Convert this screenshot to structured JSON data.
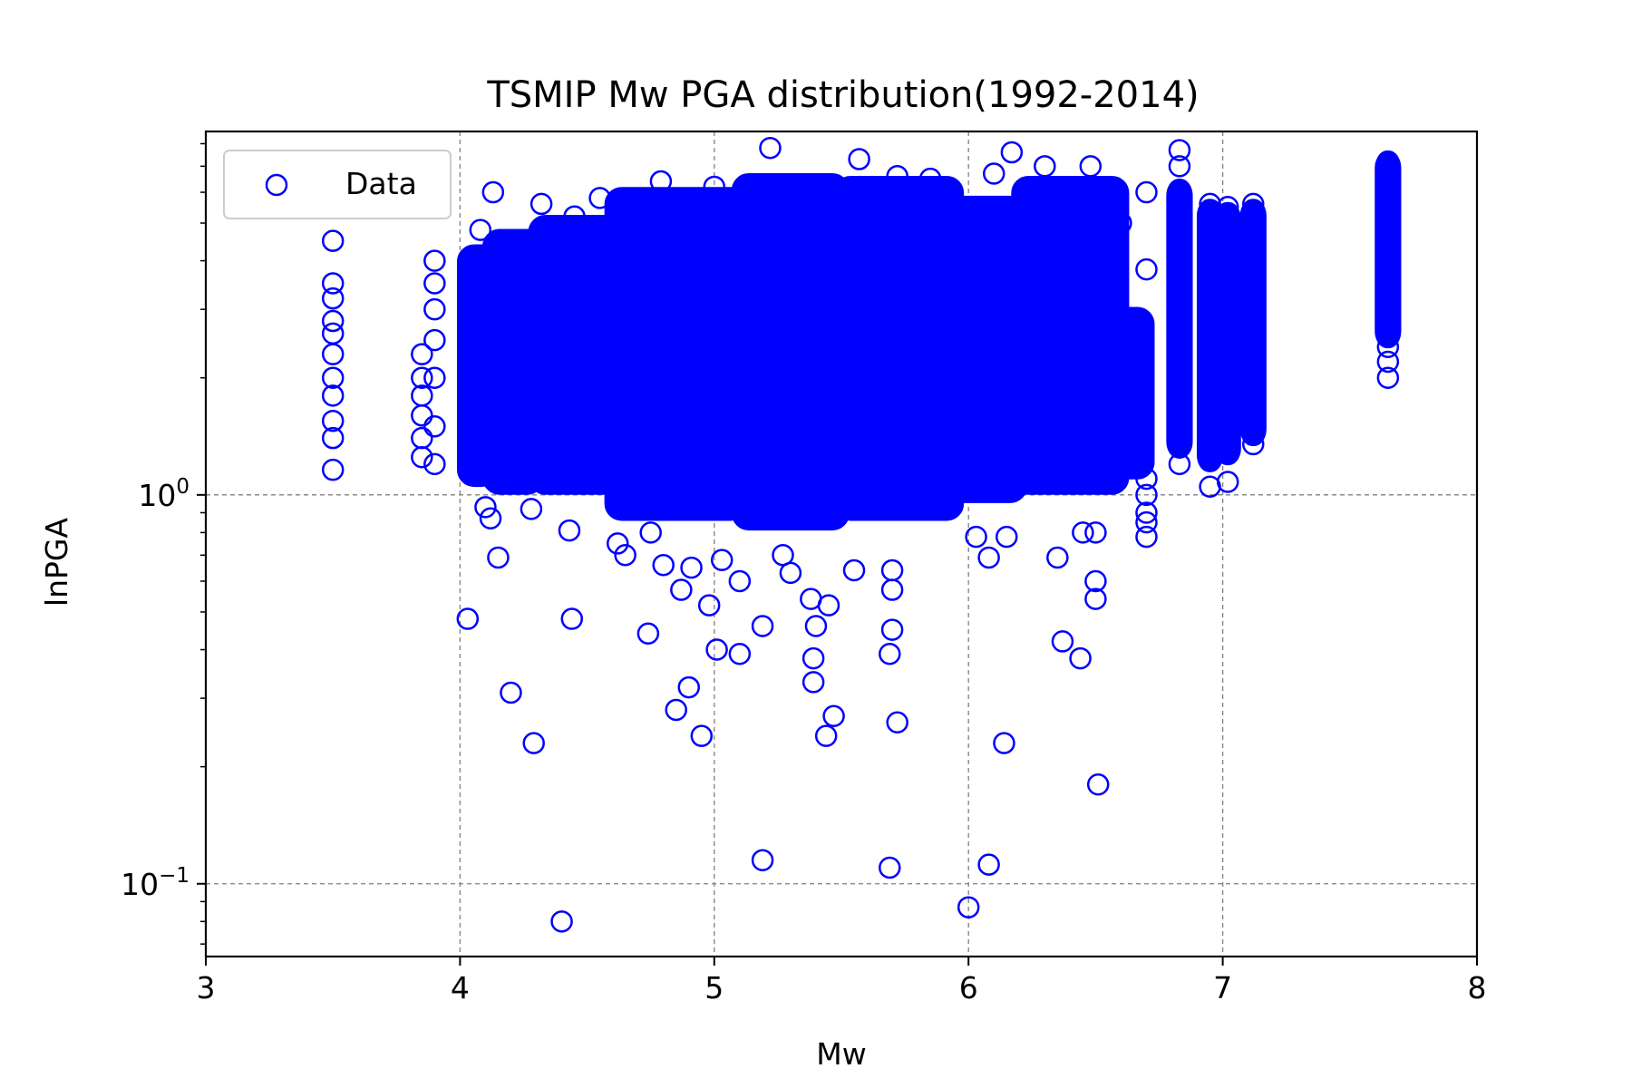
{
  "chart_data": {
    "type": "scatter",
    "title": "TSMIP Mw PGA distribution(1992-2014)",
    "xlabel": "Mw",
    "ylabel": "lnPGA",
    "xlim": [
      3,
      8
    ],
    "ylim": [
      0.065,
      8.6
    ],
    "yscale": "log",
    "grid": true,
    "legend_position": "top-left",
    "x_ticks": [
      {
        "label": "3",
        "value": 3
      },
      {
        "label": "4",
        "value": 4
      },
      {
        "label": "5",
        "value": 5
      },
      {
        "label": "6",
        "value": 6
      },
      {
        "label": "7",
        "value": 7
      },
      {
        "label": "8",
        "value": 8
      }
    ],
    "y_ticks": [
      {
        "base": "10",
        "exp": "0",
        "value": 1
      },
      {
        "base": "10",
        "exp": "−1",
        "value": 0.1
      }
    ],
    "marker_color": "#0000ff",
    "series": [
      {
        "name": "Data",
        "points": [
          [
            3.5,
            1.16
          ],
          [
            3.5,
            1.4
          ],
          [
            3.5,
            1.55
          ],
          [
            3.5,
            1.8
          ],
          [
            3.5,
            2.0
          ],
          [
            3.5,
            2.3
          ],
          [
            3.5,
            2.6
          ],
          [
            3.5,
            2.8
          ],
          [
            3.5,
            3.2
          ],
          [
            3.5,
            3.5
          ],
          [
            3.5,
            4.5
          ],
          [
            3.85,
            1.25
          ],
          [
            3.85,
            1.4
          ],
          [
            3.85,
            1.6
          ],
          [
            3.85,
            1.8
          ],
          [
            3.85,
            2.0
          ],
          [
            3.85,
            2.3
          ],
          [
            3.9,
            1.2
          ],
          [
            3.9,
            1.5
          ],
          [
            3.9,
            2.0
          ],
          [
            3.9,
            2.5
          ],
          [
            3.9,
            3.0
          ],
          [
            3.9,
            3.5
          ],
          [
            3.9,
            4.0
          ],
          [
            4.03,
            0.48
          ],
          [
            4.05,
            1.15
          ],
          [
            4.08,
            4.8
          ],
          [
            4.1,
            0.93
          ],
          [
            4.12,
            0.87
          ],
          [
            4.15,
            0.69
          ],
          [
            4.13,
            6.0
          ],
          [
            4.2,
            0.31
          ],
          [
            4.28,
            0.92
          ],
          [
            4.29,
            0.23
          ],
          [
            4.32,
            5.6
          ],
          [
            4.4,
            0.08
          ],
          [
            4.43,
            0.81
          ],
          [
            4.44,
            0.48
          ],
          [
            4.45,
            5.2
          ],
          [
            4.55,
            5.8
          ],
          [
            4.62,
            0.75
          ],
          [
            4.65,
            0.7
          ],
          [
            4.74,
            0.44
          ],
          [
            4.75,
            0.8
          ],
          [
            4.79,
            6.4
          ],
          [
            4.8,
            0.66
          ],
          [
            4.85,
            0.28
          ],
          [
            4.87,
            0.57
          ],
          [
            4.9,
            0.32
          ],
          [
            4.91,
            0.65
          ],
          [
            4.95,
            0.24
          ],
          [
            4.98,
            0.52
          ],
          [
            5.0,
            6.2
          ],
          [
            5.01,
            0.4
          ],
          [
            5.03,
            0.68
          ],
          [
            5.1,
            0.39
          ],
          [
            5.1,
            0.6
          ],
          [
            5.19,
            0.115
          ],
          [
            5.19,
            0.46
          ],
          [
            5.22,
            7.8
          ],
          [
            5.27,
            0.7
          ],
          [
            5.3,
            0.63
          ],
          [
            5.38,
            0.54
          ],
          [
            5.39,
            0.33
          ],
          [
            5.39,
            0.38
          ],
          [
            5.4,
            0.46
          ],
          [
            5.44,
            0.24
          ],
          [
            5.45,
            0.52
          ],
          [
            5.47,
            0.27
          ],
          [
            5.55,
            0.64
          ],
          [
            5.57,
            7.3
          ],
          [
            5.69,
            0.11
          ],
          [
            5.69,
            0.39
          ],
          [
            5.7,
            0.45
          ],
          [
            5.7,
            0.57
          ],
          [
            5.7,
            0.64
          ],
          [
            5.72,
            0.26
          ],
          [
            5.72,
            6.6
          ],
          [
            5.85,
            6.5
          ],
          [
            6.0,
            0.087
          ],
          [
            6.03,
            0.78
          ],
          [
            6.08,
            0.69
          ],
          [
            6.08,
            0.112
          ],
          [
            6.1,
            6.7
          ],
          [
            6.14,
            0.23
          ],
          [
            6.15,
            0.78
          ],
          [
            6.17,
            7.6
          ],
          [
            6.3,
            7.0
          ],
          [
            6.35,
            0.69
          ],
          [
            6.37,
            0.42
          ],
          [
            6.44,
            0.38
          ],
          [
            6.45,
            0.8
          ],
          [
            6.5,
            0.54
          ],
          [
            6.5,
            0.6
          ],
          [
            6.5,
            0.8
          ],
          [
            6.51,
            0.18
          ],
          [
            6.48,
            7.0
          ],
          [
            6.6,
            5.0
          ],
          [
            6.7,
            0.78
          ],
          [
            6.7,
            0.85
          ],
          [
            6.7,
            0.9
          ],
          [
            6.7,
            1.0
          ],
          [
            6.7,
            1.1
          ],
          [
            6.7,
            3.8
          ],
          [
            6.7,
            6.0
          ],
          [
            6.83,
            1.2
          ],
          [
            6.83,
            1.5
          ],
          [
            6.83,
            2.0
          ],
          [
            6.83,
            2.5
          ],
          [
            6.83,
            3.0
          ],
          [
            6.83,
            4.0
          ],
          [
            6.83,
            5.0
          ],
          [
            6.83,
            6.0
          ],
          [
            6.83,
            7.0
          ],
          [
            6.83,
            7.7
          ],
          [
            6.95,
            1.05
          ],
          [
            6.95,
            1.3
          ],
          [
            6.95,
            1.7
          ],
          [
            6.95,
            2.2
          ],
          [
            6.95,
            3.0
          ],
          [
            6.95,
            4.0
          ],
          [
            6.95,
            5.0
          ],
          [
            6.95,
            5.6
          ],
          [
            7.02,
            1.08
          ],
          [
            7.02,
            1.3
          ],
          [
            7.02,
            1.8
          ],
          [
            7.02,
            2.5
          ],
          [
            7.02,
            3.5
          ],
          [
            7.02,
            4.5
          ],
          [
            7.02,
            5.5
          ],
          [
            7.12,
            1.35
          ],
          [
            7.12,
            1.7
          ],
          [
            7.12,
            2.2
          ],
          [
            7.12,
            3.0
          ],
          [
            7.12,
            4.0
          ],
          [
            7.12,
            5.0
          ],
          [
            7.12,
            5.6
          ],
          [
            7.65,
            2.0
          ],
          [
            7.65,
            2.2
          ],
          [
            7.65,
            2.4
          ],
          [
            7.65,
            2.8
          ],
          [
            7.65,
            3.2
          ],
          [
            7.65,
            3.8
          ],
          [
            7.65,
            4.4
          ],
          [
            7.65,
            5.0
          ],
          [
            7.65,
            5.6
          ],
          [
            7.65,
            6.2
          ],
          [
            7.65,
            6.8
          ],
          [
            7.65,
            7.2
          ]
        ],
        "dense_bands": [
          {
            "x_range": [
              4.02,
              4.12
            ],
            "y_range": [
              1.1,
              4.2
            ]
          },
          {
            "x_range": [
              4.12,
              4.3
            ],
            "y_range": [
              1.05,
              4.6
            ]
          },
          {
            "x_range": [
              4.3,
              4.6
            ],
            "y_range": [
              1.05,
              5.0
            ]
          },
          {
            "x_range": [
              4.6,
              5.1
            ],
            "y_range": [
              0.9,
              5.9
            ]
          },
          {
            "x_range": [
              5.1,
              5.5
            ],
            "y_range": [
              0.85,
              6.4
            ]
          },
          {
            "x_range": [
              5.5,
              5.95
            ],
            "y_range": [
              0.9,
              6.3
            ]
          },
          {
            "x_range": [
              5.95,
              6.2
            ],
            "y_range": [
              1.0,
              5.6
            ]
          },
          {
            "x_range": [
              6.2,
              6.6
            ],
            "y_range": [
              1.05,
              6.3
            ]
          },
          {
            "x_range": [
              6.6,
              6.7
            ],
            "y_range": [
              1.15,
              2.9
            ]
          },
          {
            "x_range": [
              6.81,
              6.85
            ],
            "y_range": [
              1.3,
              6.2
            ]
          },
          {
            "x_range": [
              6.93,
              6.97
            ],
            "y_range": [
              1.2,
              5.5
            ]
          },
          {
            "x_range": [
              7.0,
              7.04
            ],
            "y_range": [
              1.25,
              5.4
            ]
          },
          {
            "x_range": [
              7.1,
              7.14
            ],
            "y_range": [
              1.4,
              5.5
            ]
          },
          {
            "x_range": [
              7.63,
              7.67
            ],
            "y_range": [
              2.5,
              7.3
            ]
          }
        ]
      }
    ]
  }
}
